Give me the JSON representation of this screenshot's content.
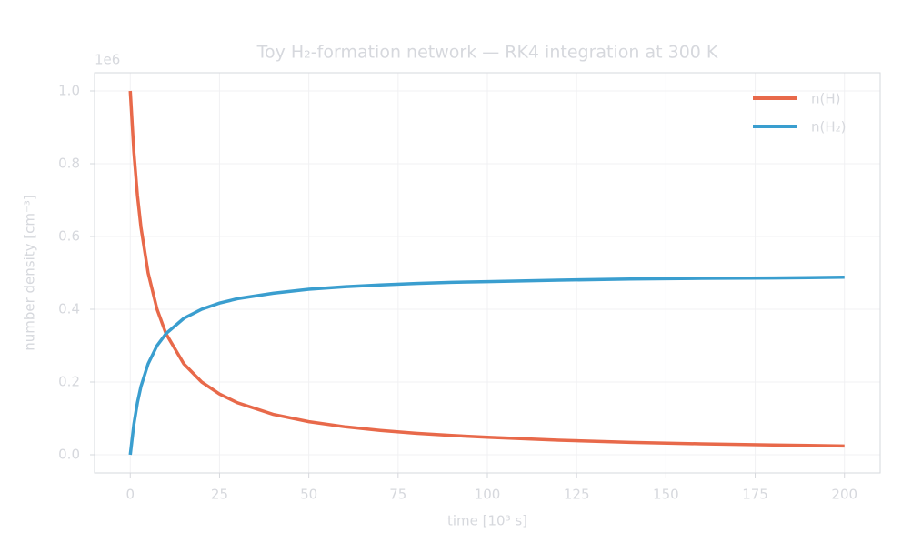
{
  "chart_data": {
    "type": "line",
    "title": "Toy H₂-formation network — RK4 integration at 300 K",
    "x_label": "time  [10³ s]",
    "y_label": "number density  [cm⁻³]",
    "y_offset_label": "1e6",
    "x": [
      0,
      1,
      2,
      3,
      5,
      7.5,
      10,
      15,
      20,
      25,
      30,
      40,
      50,
      60,
      70,
      80,
      90,
      100,
      120,
      140,
      160,
      180,
      200
    ],
    "series": [
      {
        "name": "n(H)",
        "color": "#e8694a",
        "values": [
          1.0,
          0.833,
          0.714,
          0.625,
          0.5,
          0.4,
          0.333,
          0.25,
          0.2,
          0.167,
          0.143,
          0.111,
          0.091,
          0.077,
          0.067,
          0.059,
          0.053,
          0.048,
          0.04,
          0.034,
          0.03,
          0.027,
          0.024
        ]
      },
      {
        "name": "n(H₂)",
        "color": "#3a9ecf",
        "values": [
          0.0,
          0.083,
          0.143,
          0.188,
          0.25,
          0.3,
          0.333,
          0.375,
          0.4,
          0.417,
          0.429,
          0.444,
          0.455,
          0.462,
          0.467,
          0.471,
          0.474,
          0.476,
          0.48,
          0.483,
          0.485,
          0.486,
          0.488
        ]
      }
    ],
    "xlim": [
      -10,
      210
    ],
    "xticks": [
      0,
      25,
      50,
      75,
      100,
      125,
      150,
      175,
      200
    ],
    "ylim": [
      -0.05,
      1.05
    ],
    "yticks": [
      {
        "value": 0,
        "label": "0.0"
      },
      0.2,
      0.4,
      0.6,
      0.8,
      {
        "value": 1,
        "label": "1.0"
      }
    ],
    "grid": true,
    "legend": "upper right"
  }
}
